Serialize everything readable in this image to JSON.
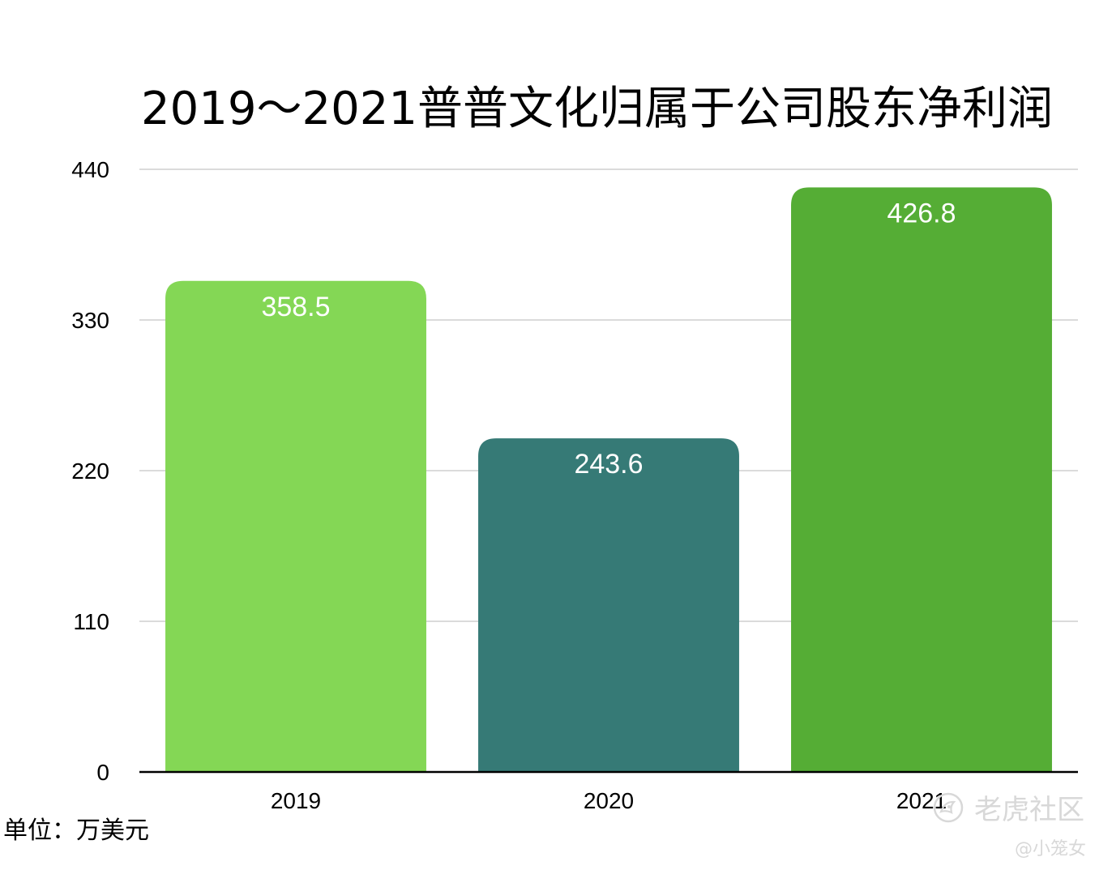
{
  "chart_data": {
    "type": "bar",
    "title": "2019～2021普普文化归属于公司股东净利润",
    "categories": [
      "2019",
      "2020",
      "2021"
    ],
    "values": [
      358.5,
      243.6,
      426.8
    ],
    "data_labels": [
      "358.5",
      "243.6",
      "426.8"
    ],
    "colors": [
      "#84d755",
      "#367a76",
      "#55ad35"
    ],
    "ylim": [
      0,
      440
    ],
    "yticks": [
      0,
      110,
      220,
      330,
      440
    ],
    "ytick_labels": [
      "0",
      "110",
      "220",
      "330",
      "440"
    ],
    "grid": true,
    "unit_note": "单位：万美元"
  },
  "watermark": {
    "brand": "老虎社区",
    "author": "@小笼女",
    "icon": "tiger-logo-icon"
  }
}
